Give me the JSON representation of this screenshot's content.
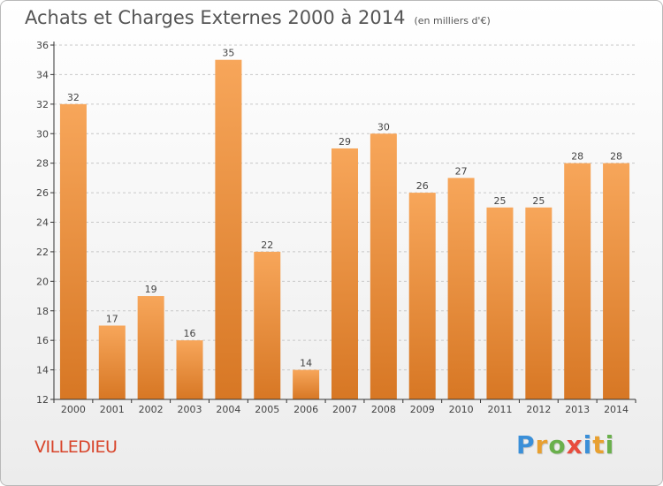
{
  "title": "Achats et Charges Externes 2000 à 2014",
  "unit": "(en milliers d'€)",
  "place": "VILLEDIEU",
  "brand": {
    "letters": [
      "P",
      "r",
      "o",
      "x",
      "i",
      "t",
      "i"
    ],
    "colors": [
      "#3a8fd8",
      "#e8a030",
      "#6ab04c",
      "#e84c3d",
      "#3a8fd8",
      "#e8a030",
      "#6ab04c"
    ]
  },
  "colors": {
    "bar_light": "#f7a65a",
    "bar_dark": "#d77724",
    "grid": "#c8c8c8",
    "axis": "#333333"
  },
  "chart_data": {
    "type": "bar",
    "categories": [
      "2000",
      "2001",
      "2002",
      "2003",
      "2004",
      "2005",
      "2006",
      "2007",
      "2008",
      "2009",
      "2010",
      "2011",
      "2012",
      "2013",
      "2014"
    ],
    "values": [
      32,
      17,
      19,
      16,
      35,
      22,
      14,
      29,
      30,
      26,
      27,
      25,
      25,
      28,
      28
    ],
    "ylim": [
      12,
      36
    ],
    "yticks": [
      12,
      14,
      16,
      18,
      20,
      22,
      24,
      26,
      28,
      30,
      32,
      34,
      36
    ],
    "grid": true,
    "data_labels": true
  }
}
